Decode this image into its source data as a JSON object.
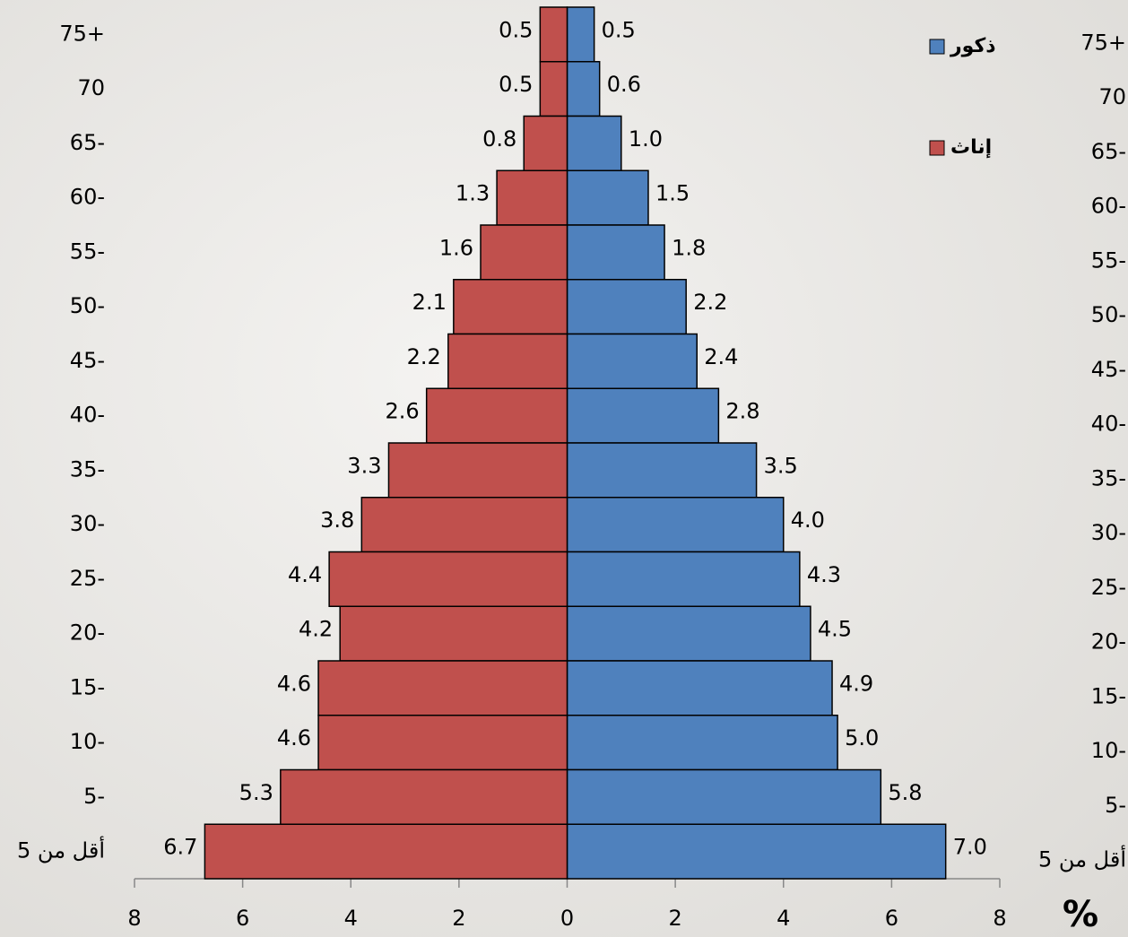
{
  "chart_data": {
    "type": "pyramid",
    "categories": [
      "75+",
      "70",
      "65-",
      "60-",
      "55-",
      "50-",
      "45-",
      "40-",
      "35-",
      "30-",
      "25-",
      "20-",
      "15-",
      "10-",
      "5-",
      "أقل من 5"
    ],
    "series": [
      {
        "name": "ذكور",
        "color": "#4f81bd",
        "values": [
          0.5,
          0.6,
          1.0,
          1.5,
          1.8,
          2.2,
          2.4,
          2.8,
          3.5,
          4.0,
          4.3,
          4.5,
          4.9,
          5.0,
          5.8,
          7.0
        ],
        "value_labels": [
          "0.5",
          "0.6",
          "1.0",
          "1.5",
          "1.8",
          "2.2",
          "2.4",
          "2.8",
          "3.5",
          "4.0",
          "4.3",
          "4.5",
          "4.9",
          "5.0",
          "5.8",
          "7.0"
        ]
      },
      {
        "name": "إناث",
        "color": "#c0504d",
        "values": [
          -0.5,
          -0.5,
          -0.8,
          -1.3,
          -1.6,
          -2.1,
          -2.2,
          -2.6,
          -3.3,
          -3.8,
          -4.4,
          -4.2,
          -4.6,
          -4.6,
          -5.3,
          -6.7
        ],
        "value_labels": [
          "0.5",
          "0.5",
          "0.8",
          "1.3",
          "1.6",
          "2.1",
          "2.2",
          "2.6",
          "3.3",
          "3.8",
          "4.4",
          "4.2",
          "4.6",
          "4.6",
          "5.3",
          "6.7"
        ]
      }
    ],
    "xlabel": "%",
    "xlim": [
      -8,
      8
    ],
    "xticks": [
      {
        "value": -8,
        "label": "8"
      },
      {
        "value": -6,
        "label": "6"
      },
      {
        "value": -4,
        "label": "4"
      },
      {
        "value": -2,
        "label": "2"
      },
      0,
      2,
      4,
      6,
      8
    ],
    "legend": "top-right"
  }
}
